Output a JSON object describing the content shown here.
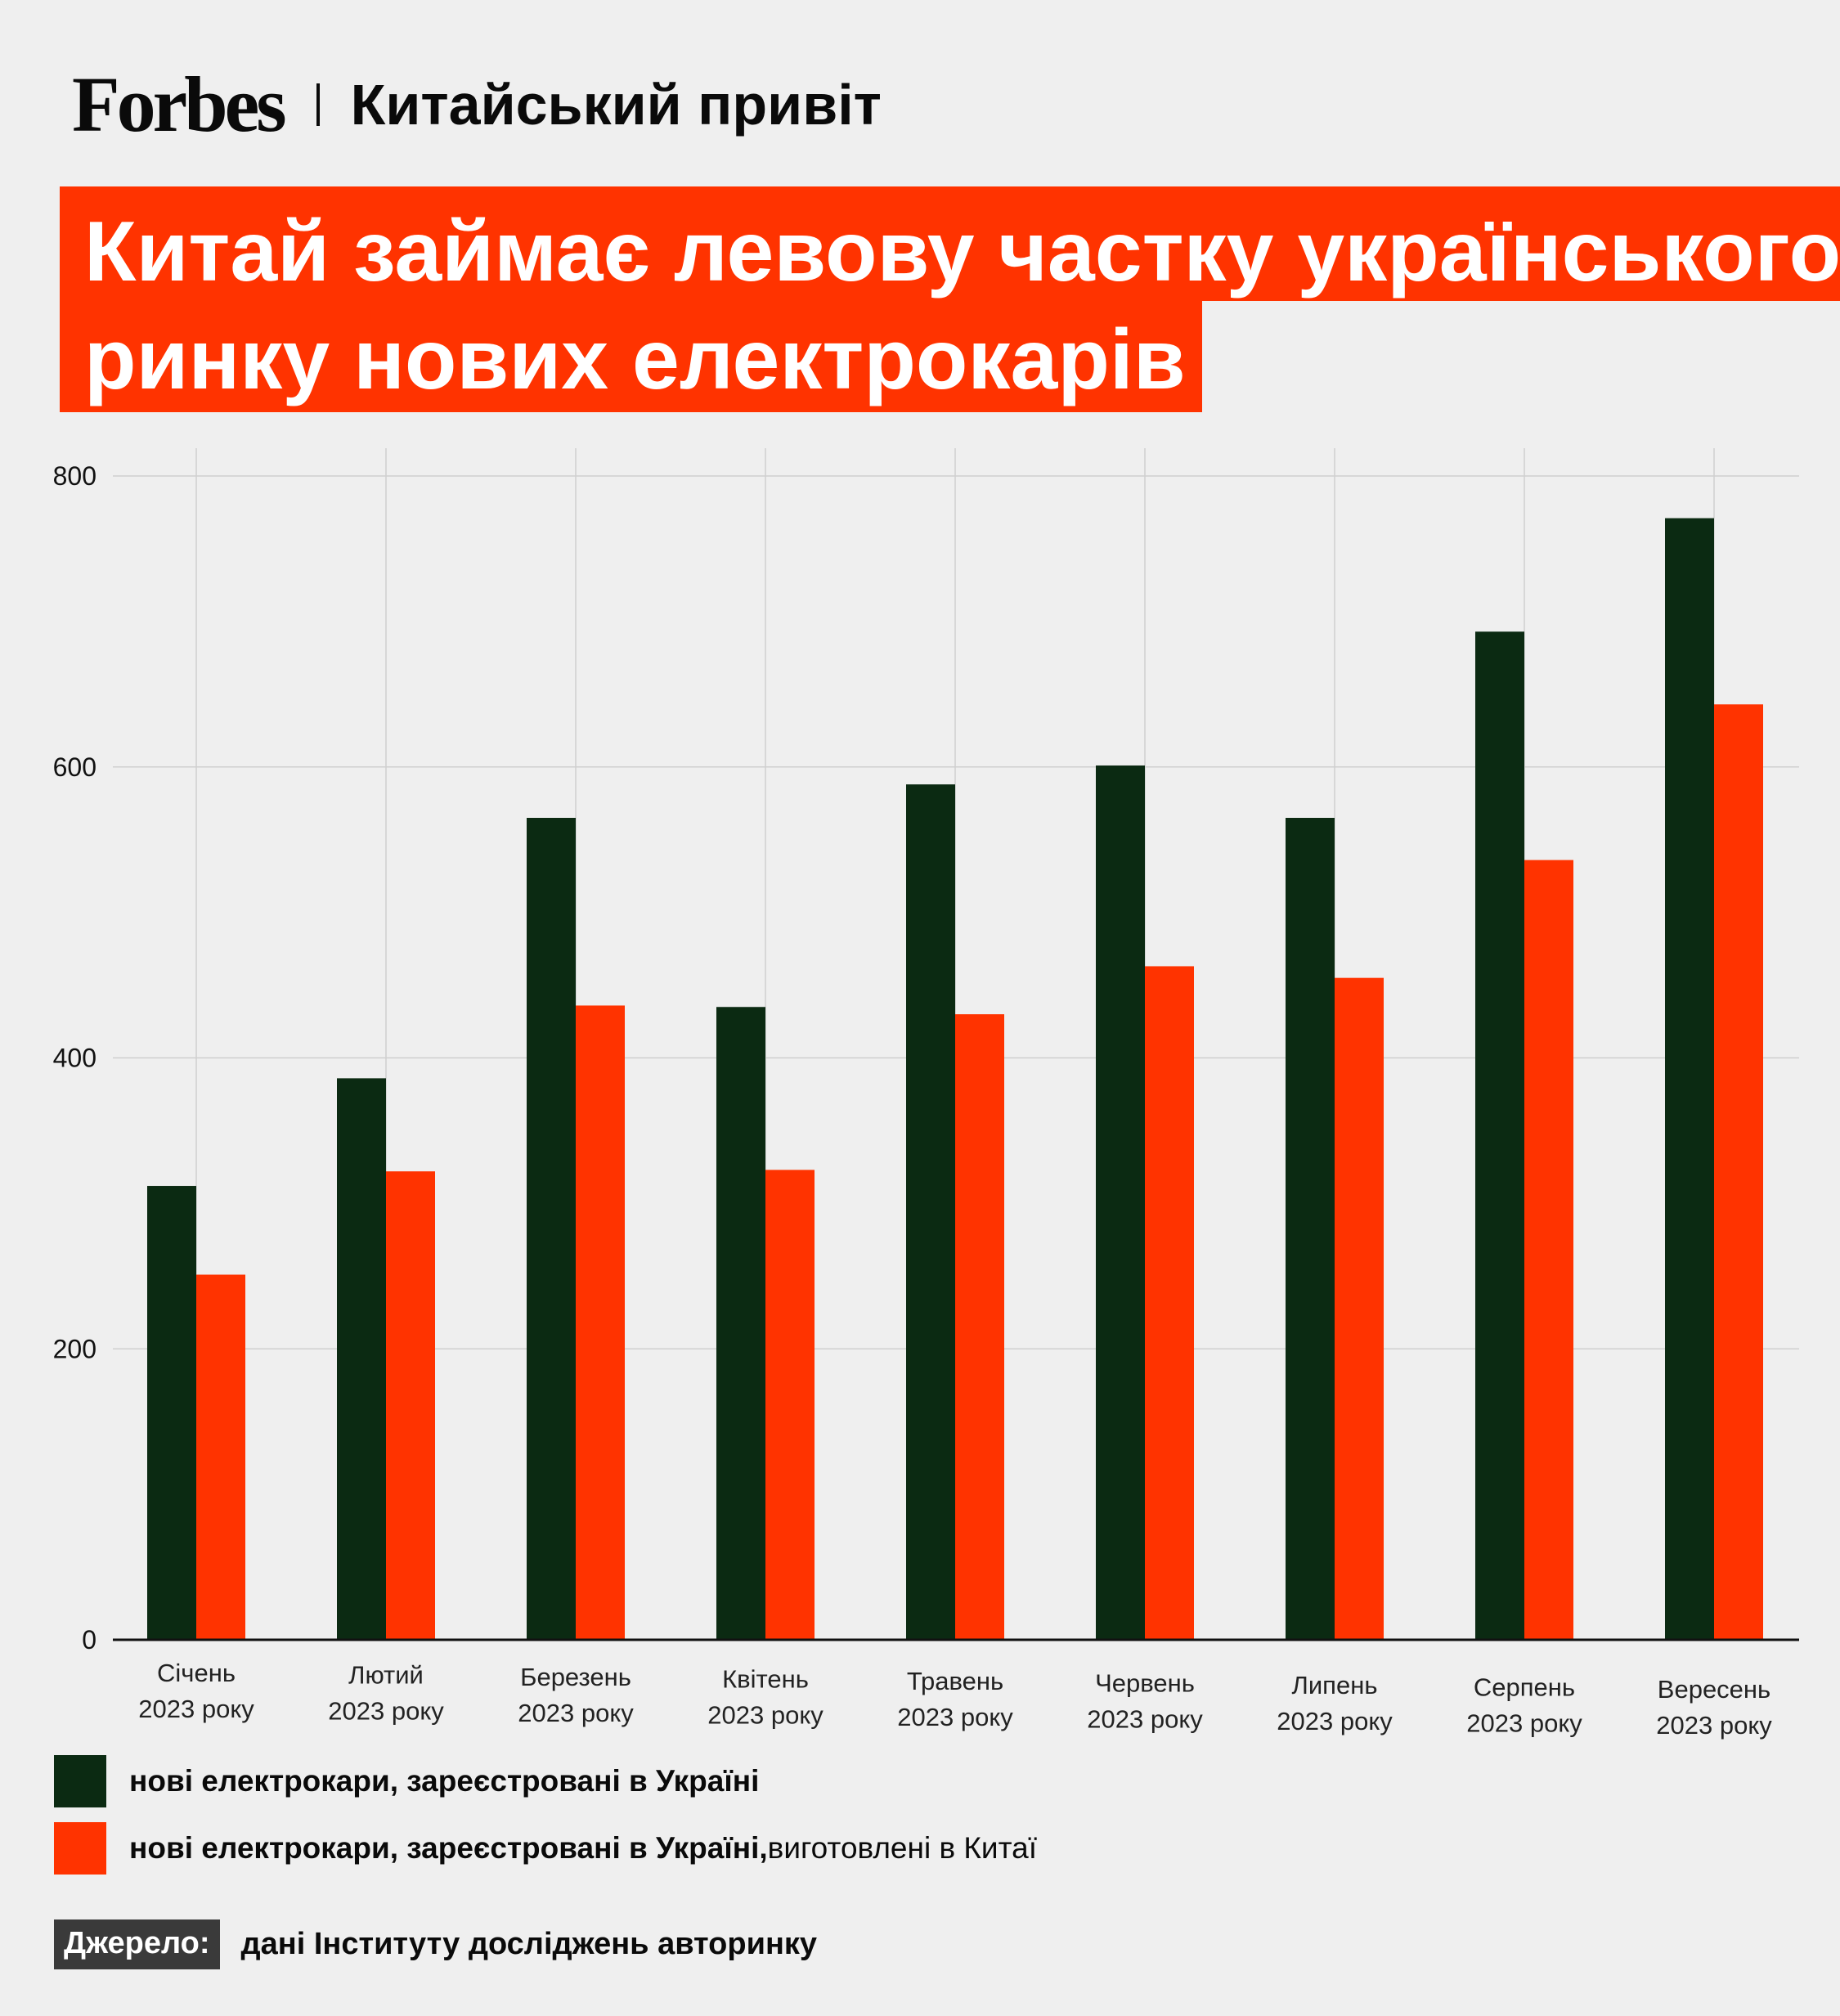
{
  "brand": {
    "logo": "Forbes",
    "section": "Китайський привіт"
  },
  "headline": {
    "line1": "Китай займає левову частку українського",
    "line2": "ринку нових електрокарів"
  },
  "colors": {
    "series_ukraine": "#0b2a12",
    "series_china": "#ff3300",
    "accent": "#ff3300"
  },
  "chart_data": {
    "type": "bar",
    "categories": [
      [
        "Січень",
        "2023 року"
      ],
      [
        "Лютий",
        "2023 року"
      ],
      [
        "Березень",
        "2023 року"
      ],
      [
        "Квітень",
        "2023 року"
      ],
      [
        "Травень",
        "2023 року"
      ],
      [
        "Червень",
        "2023 року"
      ],
      [
        "Липень",
        "2023 року"
      ],
      [
        "Серпень",
        "2023 року"
      ],
      [
        "Вересень",
        "2023 року"
      ]
    ],
    "series": [
      {
        "values": [
          312,
          386,
          565,
          435,
          588,
          601,
          565,
          693,
          771
        ]
      },
      {
        "values": [
          251,
          322,
          436,
          323,
          430,
          463,
          455,
          536,
          643
        ]
      }
    ],
    "ylim": [
      0,
      800
    ],
    "yticks": [
      0,
      200,
      400,
      600,
      800
    ],
    "grid": true
  },
  "legend": [
    {
      "label": "нові електрокари, зареєстровані в Україні",
      "suffix": ""
    },
    {
      "label": "нові електрокари, зареєстровані в Україні,",
      "suffix": " виготовлені в Китаї"
    }
  ],
  "source": {
    "tag": "Джерело:",
    "text": "дані Інституту досліджень авторинку"
  }
}
